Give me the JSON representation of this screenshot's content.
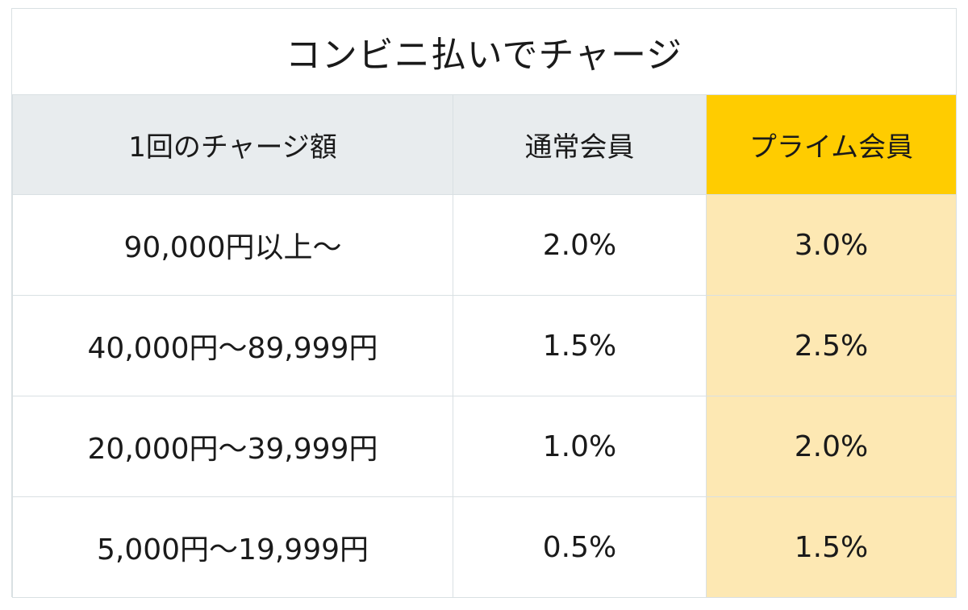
{
  "title": "コンビニ払いでチャージ",
  "table": {
    "headers": [
      "1回のチャージ額",
      "通常会員",
      "プライム会員"
    ],
    "rows": [
      [
        "90,000円以上～",
        "2.0%",
        "3.0%"
      ],
      [
        "40,000円～89,999円",
        "1.5%",
        "2.5%"
      ],
      [
        "20,000円～39,999円",
        "1.0%",
        "2.0%"
      ],
      [
        "5,000円～19,999円",
        "0.5%",
        "1.5%"
      ]
    ]
  },
  "colors": {
    "header_bg": "#e8ecee",
    "prime_header_bg": "#ffcc00",
    "prime_cell_bg": "#fde8b3",
    "border": "#d9e0e3"
  }
}
